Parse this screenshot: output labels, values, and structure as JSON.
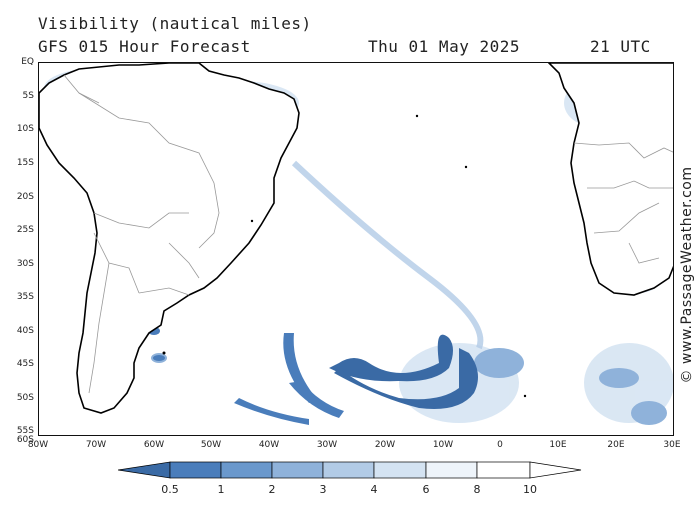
{
  "title": {
    "line1": "Visibility (nautical miles)",
    "line2": "GFS 015 Hour Forecast",
    "date": "Thu 01 May 2025",
    "time": "21 UTC"
  },
  "credit": "© www.PassageWeather.com",
  "map": {
    "lat_labels": [
      "EQ",
      "5S",
      "10S",
      "15S",
      "20S",
      "25S",
      "30S",
      "35S",
      "40S",
      "45S",
      "50S",
      "55S",
      "60S"
    ],
    "lon_labels": [
      "80W",
      "70W",
      "60W",
      "50W",
      "40W",
      "30W",
      "20W",
      "10W",
      "0",
      "10E",
      "20E",
      "30E"
    ],
    "region": "South America / South Atlantic / Southern Africa"
  },
  "legend": {
    "ticks": [
      "0.5",
      "1",
      "2",
      "3",
      "4",
      "6",
      "8",
      "10"
    ],
    "colors": [
      "#3a6aa5",
      "#4a7dbb",
      "#6a98cc",
      "#8fb2da",
      "#b2cbe6",
      "#d4e3f2",
      "#eef4fa",
      "#ffffff"
    ]
  }
}
